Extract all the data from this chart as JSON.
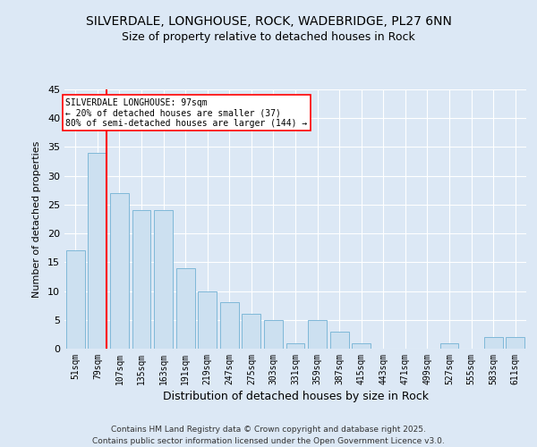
{
  "title1": "SILVERDALE, LONGHOUSE, ROCK, WADEBRIDGE, PL27 6NN",
  "title2": "Size of property relative to detached houses in Rock",
  "xlabel": "Distribution of detached houses by size in Rock",
  "ylabel": "Number of detached properties",
  "categories": [
    "51sqm",
    "79sqm",
    "107sqm",
    "135sqm",
    "163sqm",
    "191sqm",
    "219sqm",
    "247sqm",
    "275sqm",
    "303sqm",
    "331sqm",
    "359sqm",
    "387sqm",
    "415sqm",
    "443sqm",
    "471sqm",
    "499sqm",
    "527sqm",
    "555sqm",
    "583sqm",
    "611sqm"
  ],
  "values": [
    17,
    34,
    27,
    24,
    24,
    14,
    10,
    8,
    6,
    5,
    1,
    5,
    3,
    1,
    0,
    0,
    0,
    1,
    0,
    2,
    2
  ],
  "bar_color": "#cce0f0",
  "bar_edge_color": "#7fb8d8",
  "background_color": "#dce8f5",
  "grid_color": "#ffffff",
  "annotation_text": "SILVERDALE LONGHOUSE: 97sqm\n← 20% of detached houses are smaller (37)\n80% of semi-detached houses are larger (144) →",
  "vline_bar_index": 1,
  "ylim": [
    0,
    45
  ],
  "yticks": [
    0,
    5,
    10,
    15,
    20,
    25,
    30,
    35,
    40,
    45
  ],
  "footer": "Contains HM Land Registry data © Crown copyright and database right 2025.\nContains public sector information licensed under the Open Government Licence v3.0."
}
